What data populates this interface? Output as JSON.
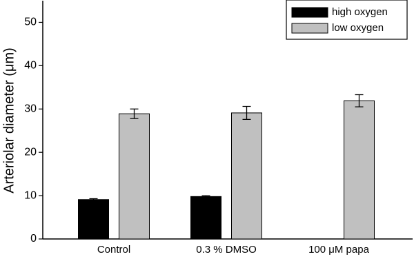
{
  "chart_data": {
    "type": "bar",
    "ylabel": "Arteriolar diameter (μm)",
    "categories": [
      "Control",
      "0.3 % DMSO",
      "100 μM papa"
    ],
    "series": [
      {
        "name": "high oxygen",
        "color": "#000000",
        "values": [
          9.1,
          9.8,
          null
        ],
        "errors": [
          0.2,
          0.2,
          null
        ]
      },
      {
        "name": "low oxygen",
        "color": "#c0c0c0",
        "values": [
          28.9,
          29.1,
          31.9
        ],
        "errors": [
          1.1,
          1.5,
          1.4
        ]
      }
    ],
    "ylim": [
      0,
      55
    ],
    "yticks": [
      0,
      10,
      20,
      30,
      40,
      50
    ],
    "legend": "upper right"
  }
}
